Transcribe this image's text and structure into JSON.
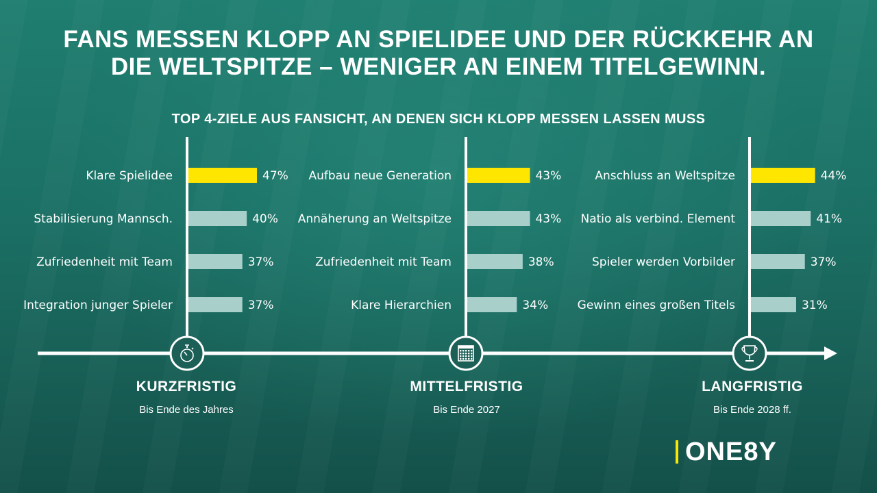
{
  "title_line1": "FANS MESSEN KLOPP AN SPIELIDEE UND DER RÜCKKEHR AN",
  "title_line2": "DIE WELTSPITZE – WENIGER AN EINEM TITELGEWINN.",
  "subtitle": "TOP 4-ZIELE AUS FANSICHT, AN DENEN SICH KLOPP MESSEN LASSEN MUSS",
  "colors": {
    "highlight": "#ffe600",
    "bar": "#a9cfca",
    "axis": "#ffffff",
    "icon_fill": "#1c5f57"
  },
  "chart_data": [
    {
      "type": "bar",
      "orientation": "horizontal",
      "phase": "KURZFRISTIG",
      "phase_sub": "Bis Ende des Jahres",
      "icon": "stopwatch-icon",
      "categories": [
        "Klare Spielidee",
        "Stabilisierung Mannsch.",
        "Zufriedenheit mit Team",
        "Integration junger Spieler"
      ],
      "values": [
        47,
        40,
        37,
        37
      ],
      "unit": "%",
      "highlight_index": 0
    },
    {
      "type": "bar",
      "orientation": "horizontal",
      "phase": "MITTELFRISTIG",
      "phase_sub": "Bis Ende 2027",
      "icon": "calendar-icon",
      "categories": [
        "Aufbau neue Generation",
        "Annäherung an Weltspitze",
        "Zufriedenheit mit Team",
        "Klare Hierarchien"
      ],
      "values": [
        43,
        43,
        38,
        34
      ],
      "unit": "%",
      "highlight_index": 0
    },
    {
      "type": "bar",
      "orientation": "horizontal",
      "phase": "LANGFRISTIG",
      "phase_sub": "Bis Ende 2028 ff.",
      "icon": "trophy-icon",
      "categories": [
        "Anschluss an Weltspitze",
        "Natio als verbind. Element",
        "Spieler werden Vorbilder",
        "Gewinn eines großen Titels"
      ],
      "values": [
        44,
        41,
        37,
        31
      ],
      "unit": "%",
      "highlight_index": 0
    }
  ],
  "logo": "ONE8Y"
}
